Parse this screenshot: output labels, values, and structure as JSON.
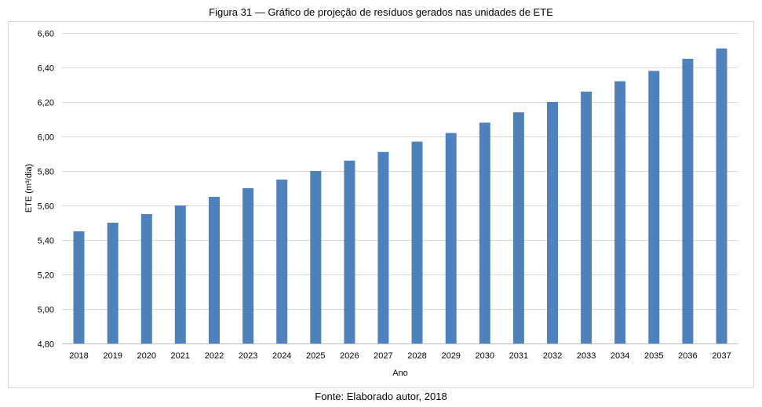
{
  "figure": {
    "title": "Figura 31 — Gráfico de projeção de resíduos gerados nas unidades de ETE",
    "source": "Fonte: Elaborado autor, 2018"
  },
  "chart_data": {
    "type": "bar",
    "xlabel": "Ano",
    "ylabel": "ETE (m³/dia)",
    "ylim": [
      4.8,
      6.6
    ],
    "ytick_step": 0.2,
    "ytick_labels": [
      "4,80",
      "5,00",
      "5,20",
      "5,40",
      "5,60",
      "5,80",
      "6,00",
      "6,20",
      "6,40",
      "6,60"
    ],
    "grid": true,
    "legend": "none",
    "bar_color": "#4f81bd",
    "categories": [
      "2018",
      "2019",
      "2020",
      "2021",
      "2022",
      "2023",
      "2024",
      "2025",
      "2026",
      "2027",
      "2028",
      "2029",
      "2030",
      "2031",
      "2032",
      "2033",
      "2034",
      "2035",
      "2036",
      "2037"
    ],
    "values": [
      5.45,
      5.5,
      5.55,
      5.6,
      5.65,
      5.7,
      5.75,
      5.8,
      5.86,
      5.91,
      5.97,
      6.02,
      6.08,
      6.14,
      6.2,
      6.26,
      6.32,
      6.38,
      6.45,
      6.51
    ]
  }
}
